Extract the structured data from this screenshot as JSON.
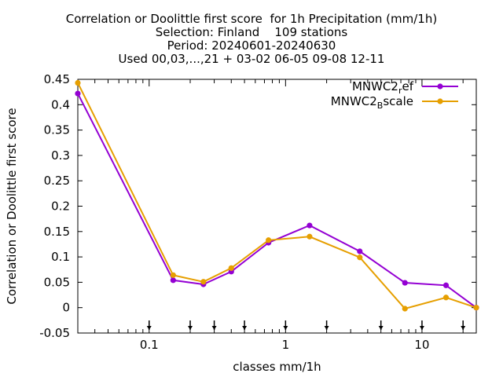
{
  "chart_data": {
    "type": "line",
    "title_lines": [
      "Correlation or Doolittle first score  for 1h Precipitation (mm/1h)",
      "Selection: Finland    109 stations",
      "Period: 20240601-20240630",
      "Used 00,03,...,21 + 03-02 06-05 09-08 12-11"
    ],
    "xlabel": "classes mm/1h",
    "ylabel": "Correlation or Doolittle first score",
    "x_scale": "log",
    "xlim": [
      0.03,
      25
    ],
    "ylim": [
      -0.05,
      0.45
    ],
    "x_tick_labels": [
      "0.1",
      "1",
      "10"
    ],
    "x_ticks": [
      0.1,
      1,
      10
    ],
    "y_tick_labels": [
      "-0.05",
      "0",
      "0.05",
      "0.1",
      "0.15",
      "0.2",
      "0.25",
      "0.3",
      "0.35",
      "0.4",
      "0.45"
    ],
    "y_ticks": [
      -0.05,
      0,
      0.05,
      0.1,
      0.15,
      0.2,
      0.25,
      0.3,
      0.35,
      0.4,
      0.45
    ],
    "class_markers": [
      0.1,
      0.2,
      0.3,
      0.5,
      1,
      2,
      5,
      10,
      20
    ],
    "grid": false,
    "legend_position": "top-right",
    "series": [
      {
        "name_main": "MNWC2",
        "name_sub": "r",
        "name_rest": "ef",
        "color": "#9400d3",
        "x": [
          0.03,
          0.15,
          0.25,
          0.4,
          0.75,
          1.5,
          3.5,
          7.5,
          15,
          25
        ],
        "y": [
          0.422,
          0.054,
          0.046,
          0.071,
          0.128,
          0.162,
          0.111,
          0.049,
          0.044,
          0.0
        ]
      },
      {
        "name_main": "MNWC2",
        "name_sub": "B",
        "name_rest": "scale",
        "color": "#e69f00",
        "x": [
          0.03,
          0.15,
          0.25,
          0.4,
          0.75,
          1.5,
          3.5,
          7.5,
          15,
          25
        ],
        "y": [
          0.443,
          0.064,
          0.051,
          0.078,
          0.133,
          0.14,
          0.099,
          -0.002,
          0.02,
          0.0
        ]
      }
    ]
  }
}
